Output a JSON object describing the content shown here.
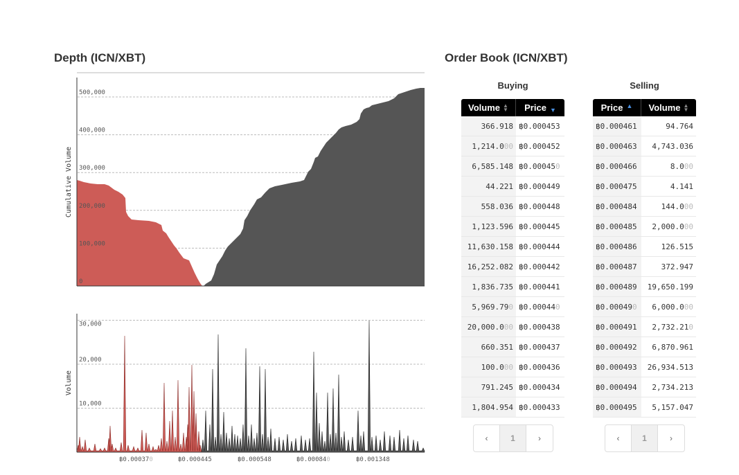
{
  "depth": {
    "title": "Depth (ICN/XBT)",
    "y_label": "Cumulative Volume",
    "y_ticks": [
      "0",
      "100,000",
      "200,000",
      "300,000",
      "400,000",
      "500,000"
    ]
  },
  "volume": {
    "y_label": "Volume",
    "y_ticks": [
      "10,000",
      "20,000",
      "30,000"
    ],
    "x_ticks": [
      {
        "main": "฿0.00037",
        "trail": "0"
      },
      {
        "main": "฿0.000445",
        "trail": ""
      },
      {
        "main": "฿0.000548",
        "trail": ""
      },
      {
        "main": "฿0.00084",
        "trail": "0"
      },
      {
        "main": "฿0.001348",
        "trail": ""
      }
    ]
  },
  "order_book": {
    "title": "Order Book (ICN/XBT)",
    "buying": {
      "caption": "Buying",
      "col_volume": "Volume",
      "col_price": "Price",
      "rows": [
        {
          "vol": "366.918",
          "vol_trail": "",
          "price": "฿0.000453",
          "price_trail": ""
        },
        {
          "vol": "1,214.0",
          "vol_trail": "00",
          "price": "฿0.000452",
          "price_trail": ""
        },
        {
          "vol": "6,585.148",
          "vol_trail": "",
          "price": "฿0.00045",
          "price_trail": "0"
        },
        {
          "vol": "44.221",
          "vol_trail": "",
          "price": "฿0.000449",
          "price_trail": ""
        },
        {
          "vol": "558.036",
          "vol_trail": "",
          "price": "฿0.000448",
          "price_trail": ""
        },
        {
          "vol": "1,123.596",
          "vol_trail": "",
          "price": "฿0.000445",
          "price_trail": ""
        },
        {
          "vol": "11,630.158",
          "vol_trail": "",
          "price": "฿0.000444",
          "price_trail": ""
        },
        {
          "vol": "16,252.082",
          "vol_trail": "",
          "price": "฿0.000442",
          "price_trail": ""
        },
        {
          "vol": "1,836.735",
          "vol_trail": "",
          "price": "฿0.000441",
          "price_trail": ""
        },
        {
          "vol": "5,969.79",
          "vol_trail": "0",
          "price": "฿0.00044",
          "price_trail": "0"
        },
        {
          "vol": "20,000.0",
          "vol_trail": "00",
          "price": "฿0.000438",
          "price_trail": ""
        },
        {
          "vol": "660.351",
          "vol_trail": "",
          "price": "฿0.000437",
          "price_trail": ""
        },
        {
          "vol": "100.0",
          "vol_trail": "00",
          "price": "฿0.000436",
          "price_trail": ""
        },
        {
          "vol": "791.245",
          "vol_trail": "",
          "price": "฿0.000434",
          "price_trail": ""
        },
        {
          "vol": "1,804.954",
          "vol_trail": "",
          "price": "฿0.000433",
          "price_trail": ""
        }
      ],
      "pager": {
        "prev": "‹",
        "page": "1",
        "next": "›"
      }
    },
    "selling": {
      "caption": "Selling",
      "col_price": "Price",
      "col_volume": "Volume",
      "rows": [
        {
          "price": "฿0.000461",
          "price_trail": "",
          "vol": "94.764",
          "vol_trail": ""
        },
        {
          "price": "฿0.000463",
          "price_trail": "",
          "vol": "4,743.036",
          "vol_trail": ""
        },
        {
          "price": "฿0.000466",
          "price_trail": "",
          "vol": "8.0",
          "vol_trail": "00"
        },
        {
          "price": "฿0.000475",
          "price_trail": "",
          "vol": "4.141",
          "vol_trail": ""
        },
        {
          "price": "฿0.000484",
          "price_trail": "",
          "vol": "144.0",
          "vol_trail": "00"
        },
        {
          "price": "฿0.000485",
          "price_trail": "",
          "vol": "2,000.0",
          "vol_trail": "00"
        },
        {
          "price": "฿0.000486",
          "price_trail": "",
          "vol": "126.515",
          "vol_trail": ""
        },
        {
          "price": "฿0.000487",
          "price_trail": "",
          "vol": "372.947",
          "vol_trail": ""
        },
        {
          "price": "฿0.000489",
          "price_trail": "",
          "vol": "19,650.199",
          "vol_trail": ""
        },
        {
          "price": "฿0.00049",
          "price_trail": "0",
          "vol": "6,000.0",
          "vol_trail": "00"
        },
        {
          "price": "฿0.000491",
          "price_trail": "",
          "vol": "2,732.21",
          "vol_trail": "0"
        },
        {
          "price": "฿0.000492",
          "price_trail": "",
          "vol": "6,870.961",
          "vol_trail": ""
        },
        {
          "price": "฿0.000493",
          "price_trail": "",
          "vol": "26,934.513",
          "vol_trail": ""
        },
        {
          "price": "฿0.000494",
          "price_trail": "",
          "vol": "2,734.213",
          "vol_trail": ""
        },
        {
          "price": "฿0.000495",
          "price_trail": "",
          "vol": "5,157.047",
          "vol_trail": ""
        }
      ],
      "pager": {
        "prev": "‹",
        "page": "1",
        "next": "›"
      }
    }
  },
  "colors": {
    "bid": "#cd5c57",
    "ask": "#555555",
    "sort_active": "#4a90e2"
  }
}
